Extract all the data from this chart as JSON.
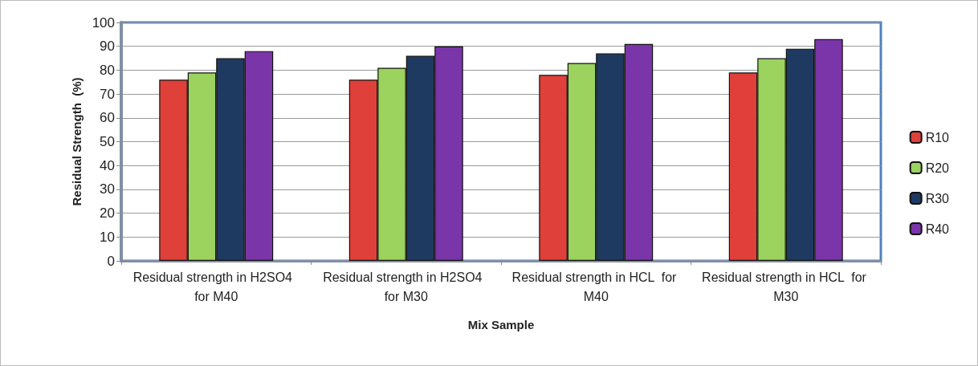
{
  "chart_data": {
    "type": "bar",
    "xlabel": "Mix Sample",
    "ylabel": "Residual Strength  (%)",
    "categories": [
      "Residual strength in H2SO4  for M40",
      "Residual strength in H2SO4  for M30",
      "Residual strength in HCL  for M40",
      "Residual strength in HCL  for M30"
    ],
    "series": [
      {
        "name": "R10",
        "color": "#e0403a",
        "values": [
          76,
          76,
          78,
          79
        ]
      },
      {
        "name": "R20",
        "color": "#9bd35e",
        "values": [
          79,
          81,
          83,
          85
        ]
      },
      {
        "name": "R30",
        "color": "#1f3a60",
        "values": [
          85,
          86,
          87,
          89
        ]
      },
      {
        "name": "R40",
        "color": "#7a35a8",
        "values": [
          88,
          90,
          91,
          93
        ]
      }
    ],
    "ylim": [
      0,
      100
    ],
    "yticks": [
      0,
      10,
      20,
      30,
      40,
      50,
      60,
      70,
      80,
      90,
      100
    ],
    "grid": "y",
    "legend": "right"
  }
}
